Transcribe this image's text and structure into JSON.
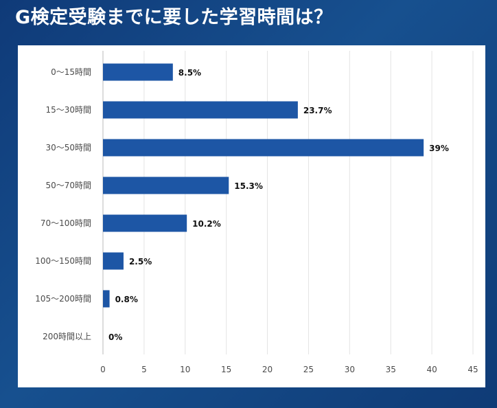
{
  "page": {
    "title": "G検定受験までに要した学習時間は？"
  },
  "chart_data": {
    "type": "bar",
    "orientation": "horizontal",
    "title": "G検定受験までに要した学習時間は？",
    "categories": [
      "0～15時間",
      "15～30時間",
      "30～50時間",
      "50～70時間",
      "70～100時間",
      "100～150時間",
      "105～200時間",
      "200時間以上"
    ],
    "values": [
      8.5,
      23.7,
      39,
      15.3,
      10.2,
      2.5,
      0.8,
      0
    ],
    "data_labels": [
      "8.5%",
      "23.7%",
      "39%",
      "15.3%",
      "10.2%",
      "2.5%",
      "0.8%",
      "0%"
    ],
    "xlim": [
      0,
      45
    ],
    "xticks": [
      0,
      5,
      10,
      15,
      20,
      25,
      30,
      35,
      40,
      45
    ],
    "xlabel": "",
    "ylabel": "",
    "grid": "vertical",
    "bar_color": "#1d56a5",
    "grid_color": "#e3e3e3",
    "axis_color": "#b8b8b8"
  }
}
